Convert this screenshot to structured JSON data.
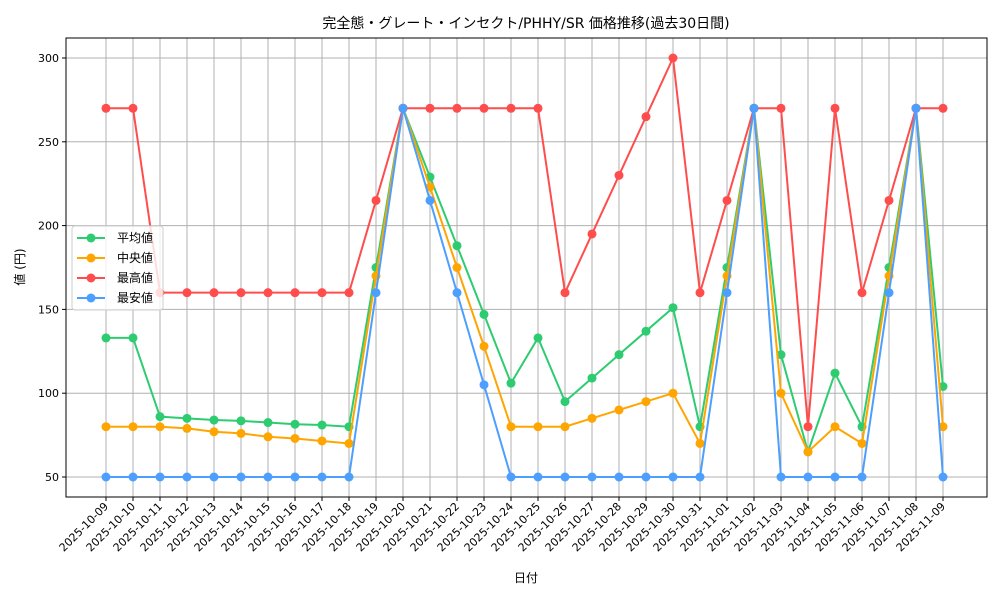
{
  "chart_data": {
    "type": "line",
    "title": "完全態・グレート・インセクト/PHHY/SR 価格推移(過去30日間)",
    "xlabel": "日付",
    "ylabel": "値 (円)",
    "ylim": [
      38,
      313
    ],
    "yticks": [
      50,
      100,
      150,
      200,
      250,
      300
    ],
    "grid": true,
    "legend_position": "center-left",
    "categories": [
      "2025-10-09",
      "2025-10-10",
      "2025-10-11",
      "2025-10-12",
      "2025-10-13",
      "2025-10-14",
      "2025-10-15",
      "2025-10-16",
      "2025-10-17",
      "2025-10-18",
      "2025-10-19",
      "2025-10-20",
      "2025-10-21",
      "2025-10-22",
      "2025-10-23",
      "2025-10-24",
      "2025-10-25",
      "2025-10-26",
      "2025-10-27",
      "2025-10-28",
      "2025-10-29",
      "2025-10-30",
      "2025-10-31",
      "2025-11-01",
      "2025-11-02",
      "2025-11-03",
      "2025-11-04",
      "2025-11-05",
      "2025-11-06",
      "2025-11-07",
      "2025-11-08",
      "2025-11-09"
    ],
    "series": [
      {
        "name": "平均値",
        "color": "#2ecc71",
        "values": [
          133,
          133,
          86,
          85,
          84,
          83.5,
          82.5,
          81.5,
          81,
          80,
          175,
          270,
          229,
          188,
          147,
          106,
          133,
          95,
          109,
          123,
          137,
          151,
          80,
          175,
          270,
          123,
          65,
          112,
          80,
          175,
          270,
          104
        ]
      },
      {
        "name": "中央値",
        "color": "#ffa500",
        "values": [
          80,
          80,
          80,
          79,
          77,
          76,
          74,
          73,
          71.5,
          70,
          170,
          270,
          223,
          175,
          128,
          80,
          80,
          80,
          85,
          90,
          95,
          100,
          70,
          170,
          270,
          100,
          65,
          80,
          70,
          170,
          270,
          80
        ]
      },
      {
        "name": "最高値",
        "color": "#ff4d4d",
        "values": [
          270,
          270,
          160,
          160,
          160,
          160,
          160,
          160,
          160,
          160,
          215,
          270,
          270,
          270,
          270,
          270,
          270,
          160,
          195,
          230,
          265,
          300,
          160,
          215,
          270,
          270,
          80,
          270,
          160,
          215,
          270,
          270
        ]
      },
      {
        "name": "最安値",
        "color": "#4d9fff",
        "values": [
          50,
          50,
          50,
          50,
          50,
          50,
          50,
          50,
          50,
          50,
          160,
          270,
          215,
          160,
          105,
          50,
          50,
          50,
          50,
          50,
          50,
          50,
          50,
          160,
          270,
          50,
          50,
          50,
          50,
          160,
          270,
          50
        ]
      }
    ]
  }
}
